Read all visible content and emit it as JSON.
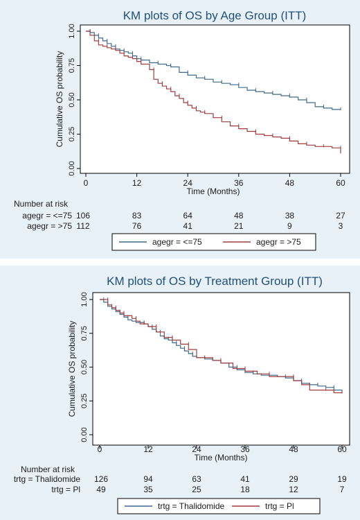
{
  "chart_data": [
    {
      "type": "line",
      "chart_kind": "kaplan-meier",
      "title": "KM plots of OS by Age Group (ITT)",
      "xlabel": "Time (Months)",
      "ylabel": "Cumulative OS probability",
      "xlim": [
        0,
        60
      ],
      "ylim": [
        0,
        1
      ],
      "xticks": [
        "0",
        "12",
        "24",
        "36",
        "48",
        "60"
      ],
      "yticks": [
        "0.00",
        "0.25",
        "0.50",
        "0.75",
        "1.00"
      ],
      "grid": false,
      "legend_position": "bottom",
      "risk_table": {
        "label": "Number at risk",
        "rows": [
          {
            "label": "agegr = <=75",
            "values": [
              "106",
              "83",
              "64",
              "48",
              "38",
              "27"
            ]
          },
          {
            "label": "agegr = >75",
            "values": [
              "112",
              "76",
              "41",
              "21",
              "9",
              "3"
            ]
          }
        ]
      },
      "series": [
        {
          "name": "agegr = <=75",
          "color": "#3e6a8e",
          "x": [
            0,
            1,
            2,
            3,
            4,
            5,
            6,
            7,
            8,
            9,
            10,
            11,
            12,
            13,
            15,
            17,
            19,
            20,
            22,
            24,
            26,
            28,
            30,
            32,
            34,
            36,
            38,
            40,
            42,
            44,
            46,
            48,
            50,
            52,
            54,
            56,
            58,
            60
          ],
          "y": [
            1.0,
            0.99,
            0.97,
            0.95,
            0.93,
            0.91,
            0.89,
            0.87,
            0.86,
            0.85,
            0.84,
            0.82,
            0.8,
            0.79,
            0.77,
            0.76,
            0.75,
            0.74,
            0.7,
            0.68,
            0.66,
            0.65,
            0.63,
            0.62,
            0.61,
            0.59,
            0.57,
            0.56,
            0.55,
            0.54,
            0.53,
            0.52,
            0.5,
            0.48,
            0.45,
            0.44,
            0.43,
            0.43
          ]
        },
        {
          "name": "agegr = >75",
          "color": "#a03c3c",
          "x": [
            0,
            1,
            2,
            3,
            4,
            5,
            6,
            7,
            8,
            9,
            10,
            11,
            12,
            13,
            15,
            16,
            17,
            18,
            19,
            20,
            21,
            22,
            23,
            24,
            25,
            26,
            27,
            28,
            30,
            32,
            34,
            36,
            38,
            40,
            42,
            44,
            46,
            48,
            50,
            52,
            54,
            56,
            58,
            60
          ],
          "y": [
            1.0,
            0.97,
            0.93,
            0.9,
            0.89,
            0.88,
            0.87,
            0.86,
            0.84,
            0.82,
            0.81,
            0.8,
            0.78,
            0.76,
            0.72,
            0.65,
            0.62,
            0.6,
            0.58,
            0.56,
            0.53,
            0.51,
            0.48,
            0.46,
            0.44,
            0.42,
            0.41,
            0.4,
            0.37,
            0.34,
            0.31,
            0.29,
            0.27,
            0.25,
            0.24,
            0.23,
            0.22,
            0.2,
            0.18,
            0.17,
            0.16,
            0.16,
            0.15,
            0.11
          ]
        }
      ]
    },
    {
      "type": "line",
      "chart_kind": "kaplan-meier",
      "title": "KM plots of OS by Treatment Group (ITT)",
      "xlabel": "Time (Months)",
      "ylabel": "Cumulative OS probability",
      "xlim": [
        0,
        60
      ],
      "ylim": [
        0,
        1
      ],
      "xticks": [
        "0",
        "12",
        "24",
        "36",
        "48",
        "60"
      ],
      "yticks": [
        "0.00",
        "0.25",
        "0.50",
        "0.75",
        "1.00"
      ],
      "grid": false,
      "legend_position": "bottom",
      "risk_table": {
        "label": "Number at risk",
        "rows": [
          {
            "label": "trtg = Thalidomide",
            "values": [
              "126",
              "94",
              "63",
              "41",
              "29",
              "19"
            ]
          },
          {
            "label": "trtg = Pl",
            "values": [
              "49",
              "35",
              "25",
              "18",
              "12",
              "7"
            ]
          }
        ]
      },
      "series": [
        {
          "name": "trtg = Thalidomide",
          "color": "#3e6a8e",
          "x": [
            0,
            1,
            2,
            3,
            4,
            5,
            6,
            7,
            8,
            9,
            10,
            11,
            12,
            13,
            14,
            15,
            16,
            17,
            18,
            19,
            20,
            21,
            22,
            23,
            24,
            26,
            28,
            30,
            32,
            34,
            36,
            38,
            40,
            42,
            44,
            46,
            48,
            50,
            52,
            54,
            56,
            58,
            60
          ],
          "y": [
            1.0,
            0.98,
            0.95,
            0.93,
            0.91,
            0.89,
            0.87,
            0.85,
            0.84,
            0.83,
            0.83,
            0.82,
            0.8,
            0.78,
            0.76,
            0.73,
            0.71,
            0.7,
            0.68,
            0.66,
            0.64,
            0.62,
            0.6,
            0.58,
            0.57,
            0.56,
            0.55,
            0.53,
            0.5,
            0.48,
            0.46,
            0.45,
            0.44,
            0.44,
            0.43,
            0.42,
            0.4,
            0.38,
            0.37,
            0.36,
            0.35,
            0.33,
            0.31
          ]
        },
        {
          "name": "trtg = Pl",
          "color": "#a03c3c",
          "x": [
            0,
            2,
            3,
            4,
            5,
            6,
            8,
            9,
            10,
            11,
            12,
            14,
            16,
            18,
            20,
            22,
            24,
            26,
            28,
            30,
            33,
            36,
            39,
            42,
            45,
            48,
            50,
            52,
            54,
            56,
            58,
            60
          ],
          "y": [
            1.0,
            0.96,
            0.94,
            0.92,
            0.9,
            0.88,
            0.86,
            0.84,
            0.82,
            0.82,
            0.8,
            0.76,
            0.72,
            0.7,
            0.67,
            0.63,
            0.57,
            0.57,
            0.55,
            0.53,
            0.49,
            0.47,
            0.45,
            0.43,
            0.43,
            0.4,
            0.37,
            0.33,
            0.33,
            0.33,
            0.31,
            0.31
          ]
        }
      ]
    }
  ]
}
